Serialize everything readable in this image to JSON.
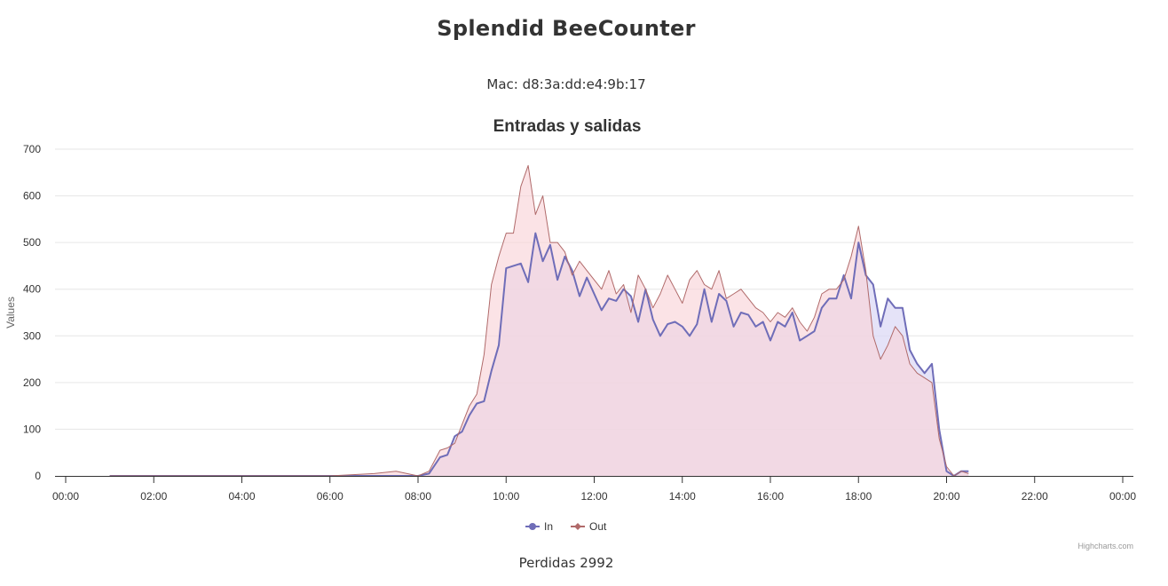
{
  "page": {
    "title": "Splendid BeeCounter",
    "mac_label": "Mac: d8:3a:dd:e4:9b:17",
    "footer": "Perdidas 2992",
    "credits": "Highcharts.com"
  },
  "colors": {
    "in_line": "#6f6db8",
    "in_fill": "#dcdaf5",
    "out_line": "#b06a6a",
    "out_fill": "#f9d4d8",
    "grid": "#e6e6e6",
    "axis": "#333333"
  },
  "chart_data": {
    "type": "area",
    "title": "Entradas y salidas",
    "ylabel": "Values",
    "xlabel": "",
    "ylim": [
      0,
      700
    ],
    "y_ticks": [
      0,
      100,
      200,
      300,
      400,
      500,
      600,
      700
    ],
    "xlim": [
      "00:00",
      "24:00"
    ],
    "x_ticks": [
      "00:00",
      "02:00",
      "04:00",
      "06:00",
      "08:00",
      "10:00",
      "12:00",
      "14:00",
      "16:00",
      "18:00",
      "20:00",
      "22:00",
      "00:00"
    ],
    "grid": true,
    "legend": "bottom-center",
    "series": [
      {
        "name": "In",
        "x": [
          "01:00",
          "02:00",
          "03:00",
          "04:00",
          "05:00",
          "06:00",
          "07:00",
          "07:30",
          "08:00",
          "08:15",
          "08:30",
          "08:40",
          "08:50",
          "09:00",
          "09:10",
          "09:20",
          "09:30",
          "09:40",
          "09:50",
          "10:00",
          "10:10",
          "10:20",
          "10:30",
          "10:40",
          "10:50",
          "11:00",
          "11:10",
          "11:20",
          "11:30",
          "11:40",
          "11:50",
          "12:00",
          "12:10",
          "12:20",
          "12:30",
          "12:40",
          "12:50",
          "13:00",
          "13:10",
          "13:20",
          "13:30",
          "13:40",
          "13:50",
          "14:00",
          "14:10",
          "14:20",
          "14:30",
          "14:40",
          "14:50",
          "15:00",
          "15:10",
          "15:20",
          "15:30",
          "15:40",
          "15:50",
          "16:00",
          "16:10",
          "16:20",
          "16:30",
          "16:40",
          "16:50",
          "17:00",
          "17:10",
          "17:20",
          "17:30",
          "17:40",
          "17:50",
          "18:00",
          "18:10",
          "18:20",
          "18:30",
          "18:40",
          "18:50",
          "19:00",
          "19:10",
          "19:20",
          "19:30",
          "19:40",
          "19:50",
          "20:00",
          "20:10",
          "20:20",
          "20:30"
        ],
        "values": [
          0,
          0,
          0,
          0,
          0,
          0,
          0,
          0,
          0,
          5,
          40,
          45,
          85,
          95,
          130,
          155,
          160,
          225,
          280,
          445,
          450,
          455,
          415,
          520,
          460,
          495,
          420,
          470,
          440,
          385,
          425,
          390,
          355,
          380,
          375,
          400,
          385,
          330,
          400,
          335,
          300,
          325,
          330,
          320,
          300,
          325,
          400,
          330,
          390,
          375,
          320,
          350,
          345,
          320,
          330,
          290,
          330,
          320,
          350,
          290,
          300,
          310,
          360,
          380,
          380,
          430,
          380,
          500,
          430,
          410,
          320,
          380,
          360,
          360,
          270,
          240,
          220,
          240,
          100,
          10,
          0,
          10,
          10
        ]
      },
      {
        "name": "Out",
        "x": [
          "01:00",
          "02:00",
          "03:00",
          "04:00",
          "05:00",
          "06:00",
          "07:00",
          "07:30",
          "08:00",
          "08:15",
          "08:30",
          "08:40",
          "08:50",
          "09:00",
          "09:10",
          "09:20",
          "09:30",
          "09:40",
          "09:50",
          "10:00",
          "10:10",
          "10:20",
          "10:30",
          "10:40",
          "10:50",
          "11:00",
          "11:10",
          "11:20",
          "11:30",
          "11:40",
          "11:50",
          "12:00",
          "12:10",
          "12:20",
          "12:30",
          "12:40",
          "12:50",
          "13:00",
          "13:10",
          "13:20",
          "13:30",
          "13:40",
          "13:50",
          "14:00",
          "14:10",
          "14:20",
          "14:30",
          "14:40",
          "14:50",
          "15:00",
          "15:10",
          "15:20",
          "15:30",
          "15:40",
          "15:50",
          "16:00",
          "16:10",
          "16:20",
          "16:30",
          "16:40",
          "16:50",
          "17:00",
          "17:10",
          "17:20",
          "17:30",
          "17:40",
          "17:50",
          "18:00",
          "18:10",
          "18:20",
          "18:30",
          "18:40",
          "18:50",
          "19:00",
          "19:10",
          "19:20",
          "19:30",
          "19:40",
          "19:50",
          "20:00",
          "20:10",
          "20:20",
          "20:30"
        ],
        "values": [
          0,
          0,
          0,
          0,
          0,
          0,
          5,
          10,
          0,
          10,
          55,
          60,
          70,
          110,
          150,
          175,
          260,
          410,
          470,
          520,
          520,
          620,
          665,
          560,
          600,
          500,
          500,
          480,
          430,
          460,
          440,
          420,
          400,
          440,
          390,
          410,
          350,
          430,
          400,
          360,
          390,
          430,
          400,
          370,
          420,
          440,
          410,
          400,
          440,
          380,
          390,
          400,
          380,
          360,
          350,
          330,
          350,
          340,
          360,
          330,
          310,
          340,
          390,
          400,
          400,
          420,
          470,
          535,
          440,
          300,
          250,
          280,
          320,
          300,
          240,
          220,
          210,
          200,
          80,
          20,
          0,
          10,
          5
        ]
      }
    ]
  }
}
